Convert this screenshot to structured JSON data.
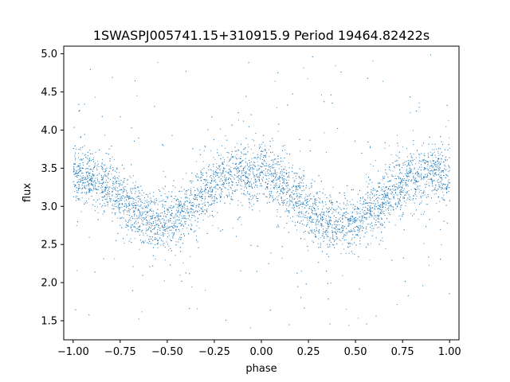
{
  "chart_data": {
    "type": "scatter",
    "title": "1SWASPJ005741.15+310915.9 Period 19464.82422s",
    "xlabel": "phase",
    "ylabel": "flux",
    "xlim": [
      -1.05,
      1.05
    ],
    "ylim": [
      1.25,
      5.1
    ],
    "xticks": [
      -1.0,
      -0.75,
      -0.5,
      -0.25,
      0.0,
      0.25,
      0.5,
      0.75,
      1.0
    ],
    "xtick_labels": [
      "−1.00",
      "−0.75",
      "−0.50",
      "−0.25",
      "0.00",
      "0.25",
      "0.50",
      "0.75",
      "1.00"
    ],
    "yticks": [
      1.5,
      2.0,
      2.5,
      3.0,
      3.5,
      4.0,
      4.5,
      5.0
    ],
    "ytick_labels": [
      "1.5",
      "2.0",
      "2.5",
      "3.0",
      "3.5",
      "4.0",
      "4.5",
      "5.0"
    ],
    "grid": false,
    "marker_color": "#1f77b4",
    "series": [
      {
        "x_range": [
          -1.0,
          1.0
        ],
        "profile_phase": [
          -1.0,
          -0.9,
          -0.8,
          -0.7,
          -0.6,
          -0.55,
          -0.5,
          -0.4,
          -0.3,
          -0.2,
          -0.1,
          0.0,
          0.1,
          0.2,
          0.3,
          0.4,
          0.45,
          0.5,
          0.6,
          0.7,
          0.8,
          0.9,
          1.0
        ],
        "profile_flux": [
          3.4,
          3.38,
          3.25,
          3.0,
          2.82,
          2.78,
          2.8,
          2.95,
          3.2,
          3.38,
          3.45,
          3.42,
          3.3,
          3.08,
          2.88,
          2.78,
          2.77,
          2.8,
          2.98,
          3.22,
          3.38,
          3.45,
          3.4
        ],
        "scatter_spread": 0.18,
        "outlier_range": [
          1.4,
          5.0
        ]
      }
    ]
  }
}
